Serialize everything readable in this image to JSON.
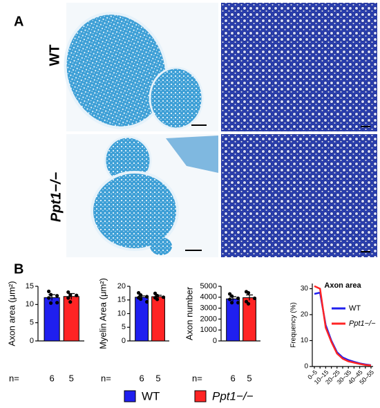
{
  "panels": [
    "A",
    "B"
  ],
  "row_labels": [
    "WT",
    "Ppt1−/−"
  ],
  "n_label": "n=",
  "chart_data": [
    {
      "type": "bar",
      "ylabel": "Axon area (μm²)",
      "values": [
        11.9,
        12.2
      ],
      "errors": [
        0.8,
        0.8
      ],
      "points": [
        [
          13.6,
          12.7,
          12.4,
          11.8,
          10.4,
          10.5
        ],
        [
          13.4,
          12.6,
          12.5,
          11.8,
          10.7
        ]
      ],
      "colors": [
        "#1f1fef",
        "#ff2424"
      ],
      "n": [
        6,
        5
      ],
      "ylim": [
        0,
        15
      ],
      "yticks": [
        0,
        5,
        10,
        15
      ]
    },
    {
      "type": "bar",
      "ylabel": "Myelin Area (μm²)",
      "values": [
        16.0,
        16.2
      ],
      "errors": [
        0.5,
        0.5
      ],
      "points": [
        [
          17.6,
          16.8,
          16.2,
          15.8,
          15.3,
          14.3
        ],
        [
          17.4,
          16.6,
          16.0,
          15.8,
          15.2
        ]
      ],
      "colors": [
        "#1f1fef",
        "#ff2424"
      ],
      "n": [
        6,
        5
      ],
      "ylim": [
        0,
        20
      ],
      "yticks": [
        0,
        5,
        10,
        15,
        20
      ]
    },
    {
      "type": "bar",
      "ylabel": "Axon number",
      "values": [
        3850,
        3960
      ],
      "errors": [
        200,
        250
      ],
      "points": [
        [
          4300,
          4100,
          3900,
          3800,
          3500,
          3500
        ],
        [
          4500,
          4400,
          3900,
          3600,
          3400
        ]
      ],
      "colors": [
        "#1f1fef",
        "#ff2424"
      ],
      "n": [
        6,
        5
      ],
      "ylim": [
        0,
        5000
      ],
      "yticks": [
        0,
        1000,
        2000,
        3000,
        4000,
        5000
      ]
    },
    {
      "type": "line",
      "title": "Axon area",
      "ylabel": "Frequency (%)",
      "categories": [
        "0–5",
        null,
        "10–15",
        null,
        "20–25",
        null,
        "30–35",
        null,
        "40–45",
        null,
        "50–55"
      ],
      "series": [
        {
          "name": "WT",
          "color": "#1f1fef",
          "values": [
            28,
            28.5,
            16,
            10,
            5.5,
            3.5,
            2.5,
            1.8,
            1.2,
            0.8,
            0.5
          ]
        },
        {
          "name": "Ppt1−/−",
          "color": "#ff2424",
          "values": [
            31,
            30,
            15,
            9.5,
            5,
            3,
            2,
            1.5,
            1,
            0.6,
            0.4
          ]
        }
      ],
      "ylim": [
        0,
        32
      ],
      "yticks": [
        0,
        10,
        20,
        30
      ]
    }
  ]
}
